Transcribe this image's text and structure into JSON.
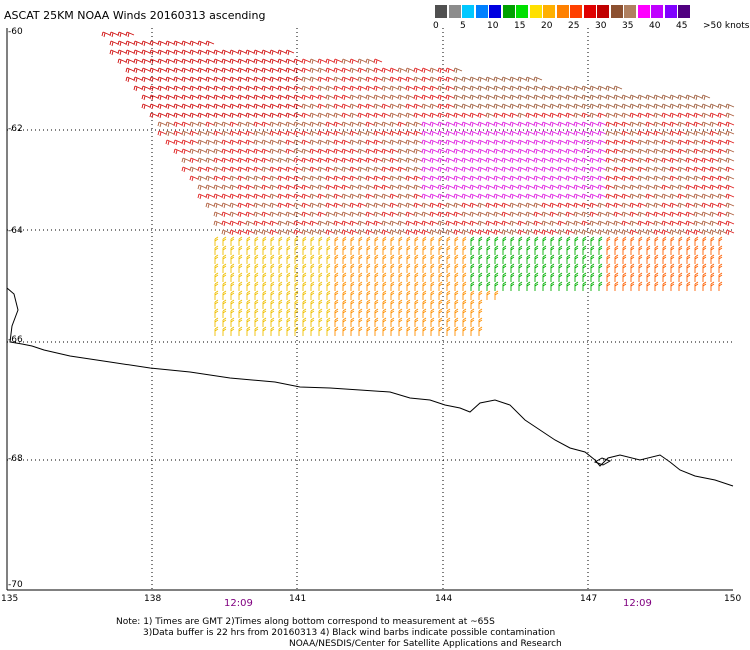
{
  "title": "ASCAT 25KM NOAA Winds 20160313 ascending",
  "legend": {
    "colors": [
      "#505050",
      "#8c8c8c",
      "#00c8ff",
      "#0080ff",
      "#0000e0",
      "#00a000",
      "#00e000",
      "#ffe000",
      "#ffb000",
      "#ff8000",
      "#ff4000",
      "#e00000",
      "#c00000",
      "#8c5030",
      "#b08060",
      "#ff00ff",
      "#c000ff",
      "#8000ff",
      "#500080"
    ],
    "labels": [
      {
        "value": "0",
        "pos": 0
      },
      {
        "value": "5",
        "pos": 2
      },
      {
        "value": "10",
        "pos": 4
      },
      {
        "value": "15",
        "pos": 6
      },
      {
        "value": "20",
        "pos": 8
      },
      {
        "value": "25",
        "pos": 10
      },
      {
        "value": "30",
        "pos": 12
      },
      {
        "value": "35",
        "pos": 14
      },
      {
        "value": "40",
        "pos": 16
      },
      {
        "value": "45",
        "pos": 18
      },
      {
        "value": ">50 knots",
        "pos": 20
      }
    ]
  },
  "axes": {
    "lon_labels": [
      "135",
      "138",
      "141",
      "144",
      "147",
      "150"
    ],
    "lat_labels": [
      "-60",
      "-62",
      "-64",
      "-66",
      "-68",
      "-70"
    ]
  },
  "times": [
    "12:09",
    "12:09"
  ],
  "notes": {
    "line1": "Note: 1) Times are GMT 2)Times along bottom correspond to measurement at ~65S",
    "line2": "3)Data buffer is 22 hrs from 20160313 4) Black wind barbs indicate possible contamination",
    "line3": "NOAA/NESDIS/Center for Satellite Applications and Research"
  }
}
